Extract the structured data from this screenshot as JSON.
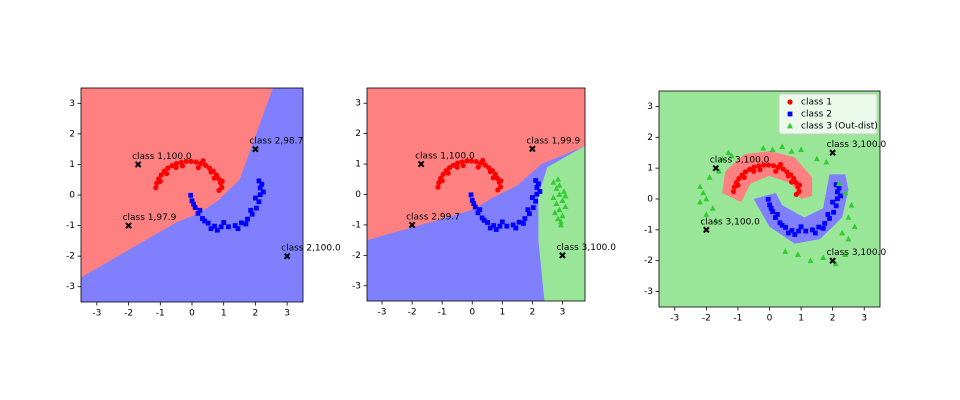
{
  "chart_data": [
    {
      "type": "scatter",
      "xlim": [
        -3.5,
        3.5
      ],
      "ylim": [
        -3.5,
        3.5
      ],
      "xticks": [
        -3,
        -2,
        -1,
        0,
        1,
        2,
        3
      ],
      "yticks": [
        -3,
        -2,
        -1,
        0,
        1,
        2,
        3
      ],
      "background": "#8080ff",
      "regions": [
        {
          "color": "#ff8080",
          "x": [
            -3.5,
            2.55,
            1.5,
            0.8,
            0.2,
            -0.5,
            -3.5
          ],
          "y": [
            3.5,
            3.5,
            0.5,
            -0.2,
            -0.6,
            -0.9,
            -2.7
          ]
        }
      ],
      "series": [
        {
          "color": "#ff0000",
          "marker": "o",
          "x": [
            0.94,
            0.9,
            0.84,
            0.77,
            0.67,
            0.55,
            0.43,
            0.28,
            0.13,
            -0.03,
            -0.18,
            -0.34,
            -0.49,
            -0.63,
            -0.76,
            -0.87,
            -0.97,
            -1.05,
            -1.11,
            -1.14,
            0.85,
            0.6,
            0.2,
            -0.3,
            -0.8,
            -1.0,
            0.95,
            0.35,
            -0.5,
            0.7
          ],
          "y": [
            0.25,
            0.4,
            0.53,
            0.66,
            0.78,
            0.88,
            0.97,
            1.03,
            1.08,
            1.1,
            1.1,
            1.07,
            1.03,
            0.96,
            0.88,
            0.78,
            0.66,
            0.53,
            0.39,
            0.24,
            0.15,
            0.75,
            0.9,
            0.95,
            0.7,
            0.45,
            0.45,
            1.12,
            0.9,
            0.55
          ]
        },
        {
          "color": "#0000ff",
          "marker": "s",
          "x": [
            -0.04,
            0.0,
            0.1,
            0.19,
            0.33,
            0.51,
            0.71,
            0.92,
            1.15,
            1.36,
            1.56,
            1.75,
            1.9,
            2.03,
            2.11,
            2.15,
            2.15,
            2.11,
            0.25,
            0.6,
            1.0,
            1.45,
            1.85,
            2.0,
            2.25,
            0.05,
            0.8,
            1.7,
            2.2,
            0.4
          ],
          "y": [
            -0.01,
            -0.19,
            -0.41,
            -0.6,
            -0.77,
            -0.92,
            -1.02,
            -1.04,
            -1.04,
            -1.0,
            -0.91,
            -0.79,
            -0.63,
            -0.43,
            -0.22,
            0.01,
            0.23,
            0.46,
            -0.5,
            -1.1,
            -0.9,
            -1.1,
            -0.5,
            -0.1,
            0.1,
            -0.3,
            -1.15,
            -0.95,
            0.35,
            -0.85
          ]
        }
      ],
      "annotations": [
        {
          "text": "class 1,100.0",
          "x": -1.7,
          "y": 1.0
        },
        {
          "text": "class 2,98.7",
          "x": 2.0,
          "y": 1.5
        },
        {
          "text": "class 1,97.9",
          "x": -2.0,
          "y": -1.0
        },
        {
          "text": "class 2,100.0",
          "x": 3.0,
          "y": -2.0
        }
      ]
    },
    {
      "type": "scatter",
      "xlim": [
        -3.5,
        3.75
      ],
      "ylim": [
        -3.5,
        3.5
      ],
      "xticks": [
        -3,
        -2,
        -1,
        0,
        1,
        2,
        3
      ],
      "yticks": [
        -3,
        -2,
        -1,
        0,
        1,
        2,
        3
      ],
      "background": "#8080ff",
      "regions": [
        {
          "color": "#ff8080",
          "x": [
            -3.5,
            3.75,
            3.75,
            2.3,
            1.5,
            0.7,
            0.0,
            -1.0,
            -3.5
          ],
          "y": [
            3.5,
            3.5,
            1.6,
            1.0,
            0.3,
            -0.1,
            -0.5,
            -0.8,
            -1.5
          ]
        },
        {
          "color": "#99e699",
          "x": [
            3.75,
            2.5,
            2.2,
            2.2,
            2.4,
            3.75
          ],
          "y": [
            1.6,
            0.9,
            0.0,
            -1.5,
            -3.5,
            -3.5
          ]
        }
      ],
      "series": [
        {
          "color": "#ff0000",
          "marker": "o",
          "x": [
            0.94,
            0.9,
            0.84,
            0.77,
            0.67,
            0.55,
            0.43,
            0.28,
            0.13,
            -0.03,
            -0.18,
            -0.34,
            -0.49,
            -0.63,
            -0.76,
            -0.87,
            -0.97,
            -1.05,
            -1.11,
            -1.14,
            0.85,
            0.6,
            0.2,
            -0.3,
            -0.8,
            -1.0,
            0.95,
            0.35,
            -0.5,
            0.7
          ],
          "y": [
            0.25,
            0.4,
            0.53,
            0.66,
            0.78,
            0.88,
            0.97,
            1.03,
            1.08,
            1.1,
            1.1,
            1.07,
            1.03,
            0.96,
            0.88,
            0.78,
            0.66,
            0.53,
            0.39,
            0.24,
            0.15,
            0.75,
            0.9,
            0.95,
            0.7,
            0.45,
            0.45,
            1.12,
            0.9,
            0.55
          ]
        },
        {
          "color": "#0000ff",
          "marker": "s",
          "x": [
            -0.04,
            0.0,
            0.1,
            0.19,
            0.33,
            0.51,
            0.71,
            0.92,
            1.15,
            1.36,
            1.56,
            1.75,
            1.9,
            2.03,
            2.11,
            2.15,
            2.15,
            2.11,
            0.25,
            0.6,
            1.0,
            1.45,
            1.85,
            2.0,
            2.25,
            0.05,
            0.8,
            1.7,
            2.2,
            0.4
          ],
          "y": [
            -0.01,
            -0.19,
            -0.41,
            -0.6,
            -0.77,
            -0.92,
            -1.02,
            -1.04,
            -1.04,
            -1.0,
            -0.91,
            -0.79,
            -0.63,
            -0.43,
            -0.22,
            0.01,
            0.23,
            0.46,
            -0.5,
            -1.1,
            -0.9,
            -1.1,
            -0.5,
            -0.1,
            0.1,
            -0.3,
            -1.15,
            -0.95,
            0.35,
            -0.85
          ]
        },
        {
          "color": "#33cc33",
          "marker": "^",
          "x": [
            2.7,
            2.8,
            2.9,
            3.0,
            3.1,
            2.75,
            2.85,
            2.95,
            3.05,
            2.8,
            2.9,
            3.0,
            2.7,
            3.1,
            2.9,
            2.85,
            2.95
          ],
          "y": [
            0.4,
            0.2,
            0.0,
            -0.2,
            -0.4,
            -0.6,
            -0.8,
            -1.0,
            0.1,
            -0.3,
            0.3,
            -0.7,
            -0.1,
            -0.05,
            -0.5,
            0.5,
            -0.9
          ]
        }
      ],
      "annotations": [
        {
          "text": "class 1,100.0",
          "x": -1.7,
          "y": 1.0
        },
        {
          "text": "class 1,99.9",
          "x": 2.0,
          "y": 1.5
        },
        {
          "text": "class 2,99.7",
          "x": -2.0,
          "y": -1.0
        },
        {
          "text": "class 3,100.0",
          "x": 3.0,
          "y": -2.0
        }
      ]
    },
    {
      "type": "scatter",
      "xlim": [
        -3.5,
        3.5
      ],
      "ylim": [
        -3.5,
        3.5
      ],
      "xticks": [
        -3,
        -2,
        -1,
        0,
        1,
        2,
        3
      ],
      "yticks": [
        -3,
        -2,
        -1,
        0,
        1,
        2,
        3
      ],
      "background": "#99e699",
      "legend": "upper right",
      "regions": [
        {
          "color": "#8080ff",
          "x": [
            -0.5,
            0.0,
            0.8,
            1.6,
            2.3,
            2.5,
            2.4,
            1.9,
            1.7,
            1.1,
            0.4,
            0.2
          ],
          "y": [
            0.0,
            -0.9,
            -1.45,
            -1.3,
            -0.6,
            0.3,
            0.8,
            0.8,
            -0.3,
            -0.6,
            -0.2,
            0.2
          ]
        },
        {
          "color": "#ff8080",
          "x": [
            -1.5,
            -1.4,
            -0.8,
            0.0,
            0.8,
            1.35,
            1.35,
            1.0,
            0.7,
            0.0,
            -0.6,
            -0.9
          ],
          "y": [
            0.2,
            0.9,
            1.45,
            1.55,
            1.35,
            0.7,
            0.1,
            0.0,
            0.5,
            0.75,
            0.5,
            -0.1
          ]
        }
      ],
      "series": [
        {
          "name": "class 1",
          "color": "#ff0000",
          "marker": "o",
          "x": [
            0.94,
            0.9,
            0.84,
            0.77,
            0.67,
            0.55,
            0.43,
            0.28,
            0.13,
            -0.03,
            -0.18,
            -0.34,
            -0.49,
            -0.63,
            -0.76,
            -0.87,
            -0.97,
            -1.05,
            -1.11,
            -1.14,
            0.85,
            0.6,
            0.2,
            -0.3,
            -0.8,
            -1.0,
            0.95,
            0.35,
            -0.5,
            0.7
          ],
          "y": [
            0.25,
            0.4,
            0.53,
            0.66,
            0.78,
            0.88,
            0.97,
            1.03,
            1.08,
            1.1,
            1.1,
            1.07,
            1.03,
            0.96,
            0.88,
            0.78,
            0.66,
            0.53,
            0.39,
            0.24,
            0.15,
            0.75,
            0.9,
            0.95,
            0.7,
            0.45,
            0.45,
            1.12,
            0.9,
            0.55
          ]
        },
        {
          "name": "class 2",
          "color": "#0000ff",
          "marker": "s",
          "x": [
            -0.04,
            0.0,
            0.1,
            0.19,
            0.33,
            0.51,
            0.71,
            0.92,
            1.15,
            1.36,
            1.56,
            1.75,
            1.9,
            2.03,
            2.11,
            2.15,
            2.15,
            2.11,
            0.25,
            0.6,
            1.0,
            1.45,
            1.85,
            2.0,
            2.25,
            0.05,
            0.8,
            1.7,
            2.2,
            0.4
          ],
          "y": [
            -0.01,
            -0.19,
            -0.41,
            -0.6,
            -0.77,
            -0.92,
            -1.02,
            -1.04,
            -1.04,
            -1.0,
            -0.91,
            -0.79,
            -0.63,
            -0.43,
            -0.22,
            0.01,
            0.23,
            0.46,
            -0.5,
            -1.1,
            -0.9,
            -1.1,
            -0.5,
            -0.1,
            0.1,
            -0.3,
            -1.15,
            -0.95,
            0.35,
            -0.85
          ]
        },
        {
          "name": "class 3 (Out-dist)",
          "color": "#33cc33",
          "marker": "^",
          "x": [
            -2.2,
            -2.0,
            -1.9,
            -2.1,
            -1.8,
            -1.5,
            -1.3,
            -1.2,
            -0.2,
            0.1,
            0.4,
            0.7,
            1.0,
            1.5,
            1.8,
            2.2,
            2.4,
            2.6,
            2.5,
            2.7,
            2.3,
            2.5,
            0.5,
            0.9,
            1.3,
            1.7,
            2.1,
            2.4,
            -2.0,
            -1.7,
            -2.2,
            -1.6
          ],
          "y": [
            0.4,
            0.0,
            0.7,
            0.2,
            -0.3,
            1.3,
            1.5,
            1.4,
            1.65,
            1.6,
            1.7,
            1.55,
            1.6,
            1.3,
            1.2,
            0.5,
            0.2,
            -0.2,
            -0.6,
            -0.9,
            -1.1,
            -1.3,
            -1.7,
            -1.8,
            -2.0,
            -1.9,
            -2.1,
            -1.8,
            -0.5,
            -0.7,
            -0.1,
            0.9
          ]
        }
      ],
      "annotations": [
        {
          "text": "class 3,100.0",
          "x": -1.7,
          "y": 1.0
        },
        {
          "text": "class 3,100.0",
          "x": 2.0,
          "y": 1.5
        },
        {
          "text": "class 3,100.0",
          "x": -2.0,
          "y": -1.0
        },
        {
          "text": "class 3,100.0",
          "x": 2.0,
          "y": -2.0
        }
      ]
    }
  ]
}
